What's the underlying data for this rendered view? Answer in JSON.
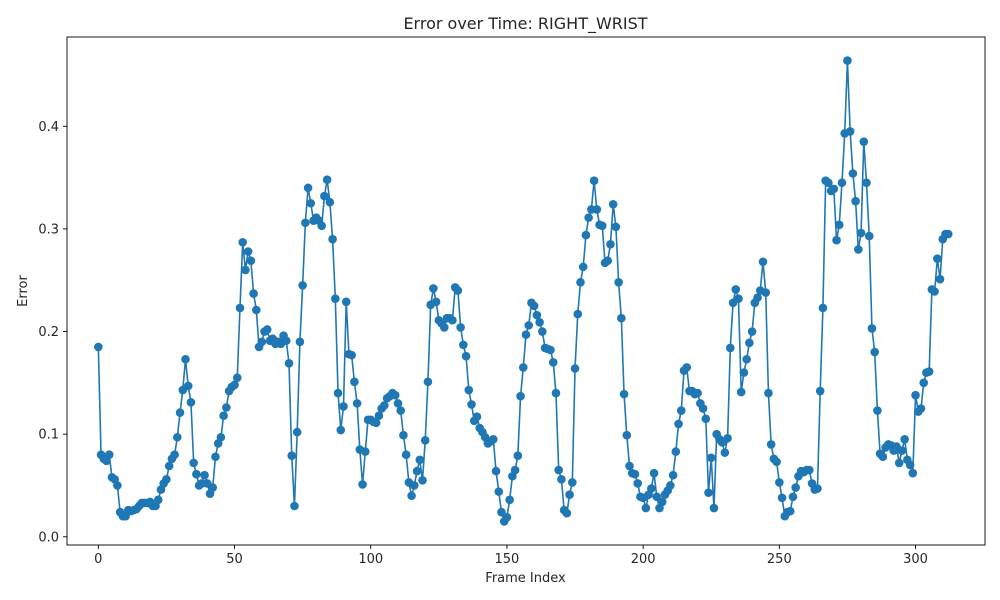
{
  "chart_data": {
    "type": "line",
    "title": "Error over Time: RIGHT_WRIST",
    "xlabel": "Frame Index",
    "ylabel": "Error",
    "xlim": [
      -11.5,
      325.5
    ],
    "ylim": [
      -0.008,
      0.487
    ],
    "x_ticks": [
      0,
      50,
      100,
      150,
      200,
      250,
      300
    ],
    "y_ticks": [
      0.0,
      0.1,
      0.2,
      0.3,
      0.4
    ],
    "y_tick_labels": [
      "0.0",
      "0.1",
      "0.2",
      "0.3",
      "0.4"
    ],
    "grid": false,
    "legend": "none",
    "series": [
      {
        "color": "#1f77b4",
        "marker": "circle",
        "x_start": 0,
        "x_step": 1,
        "values": [
          0.185,
          0.08,
          0.076,
          0.074,
          0.08,
          0.058,
          0.056,
          0.05,
          0.024,
          0.02,
          0.02,
          0.026,
          0.025,
          0.026,
          0.027,
          0.03,
          0.033,
          0.033,
          0.033,
          0.034,
          0.03,
          0.03,
          0.036,
          0.046,
          0.052,
          0.056,
          0.069,
          0.076,
          0.08,
          0.097,
          0.121,
          0.143,
          0.173,
          0.147,
          0.131,
          0.072,
          0.061,
          0.05,
          0.052,
          0.06,
          0.052,
          0.042,
          0.048,
          0.078,
          0.091,
          0.097,
          0.118,
          0.126,
          0.142,
          0.146,
          0.148,
          0.155,
          0.223,
          0.287,
          0.26,
          0.278,
          0.269,
          0.237,
          0.221,
          0.185,
          0.19,
          0.2,
          0.202,
          0.191,
          0.193,
          0.188,
          0.19,
          0.188,
          0.196,
          0.191,
          0.169,
          0.079,
          0.03,
          0.102,
          0.19,
          0.245,
          0.306,
          0.34,
          0.325,
          0.308,
          0.311,
          0.308,
          0.303,
          0.332,
          0.348,
          0.326,
          0.29,
          0.232,
          0.14,
          0.104,
          0.127,
          0.229,
          0.178,
          0.177,
          0.151,
          0.13,
          0.085,
          0.051,
          0.083,
          0.114,
          0.114,
          0.112,
          0.111,
          0.118,
          0.125,
          0.128,
          0.135,
          0.137,
          0.14,
          0.138,
          0.13,
          0.123,
          0.099,
          0.08,
          0.053,
          0.04,
          0.05,
          0.064,
          0.075,
          0.055,
          0.094,
          0.151,
          0.226,
          0.242,
          0.229,
          0.211,
          0.208,
          0.204,
          0.213,
          0.213,
          0.211,
          0.243,
          0.24,
          0.204,
          0.187,
          0.176,
          0.143,
          0.129,
          0.113,
          0.117,
          0.106,
          0.102,
          0.097,
          0.091,
          0.093,
          0.095,
          0.064,
          0.044,
          0.024,
          0.015,
          0.019,
          0.036,
          0.059,
          0.065,
          0.079,
          0.137,
          0.165,
          0.197,
          0.206,
          0.228,
          0.225,
          0.216,
          0.209,
          0.2,
          0.184,
          0.183,
          0.182,
          0.17,
          0.14,
          0.065,
          0.056,
          0.026,
          0.023,
          0.041,
          0.053,
          0.164,
          0.217,
          0.248,
          0.263,
          0.294,
          0.311,
          0.319,
          0.347,
          0.319,
          0.304,
          0.303,
          0.267,
          0.269,
          0.285,
          0.324,
          0.302,
          0.248,
          0.213,
          0.139,
          0.099,
          0.069,
          0.062,
          0.061,
          0.052,
          0.039,
          0.038,
          0.028,
          0.041,
          0.047,
          0.062,
          0.039,
          0.028,
          0.034,
          0.041,
          0.045,
          0.05,
          0.06,
          0.083,
          0.11,
          0.123,
          0.162,
          0.165,
          0.142,
          0.142,
          0.139,
          0.14,
          0.13,
          0.125,
          0.115,
          0.043,
          0.077,
          0.028,
          0.1,
          0.095,
          0.092,
          0.082,
          0.096,
          0.184,
          0.228,
          0.241,
          0.232,
          0.141,
          0.16,
          0.173,
          0.189,
          0.2,
          0.228,
          0.233,
          0.24,
          0.268,
          0.238,
          0.14,
          0.09,
          0.076,
          0.073,
          0.053,
          0.038,
          0.02,
          0.024,
          0.025,
          0.039,
          0.048,
          0.059,
          0.064,
          0.063,
          0.065,
          0.065,
          0.052,
          0.046,
          0.047,
          0.142,
          0.223,
          0.347,
          0.345,
          0.337,
          0.339,
          0.289,
          0.304,
          0.345,
          0.393,
          0.464,
          0.395,
          0.354,
          0.327,
          0.28,
          0.296,
          0.385,
          0.345,
          0.293,
          0.203,
          0.18,
          0.123,
          0.081,
          0.078,
          0.087,
          0.09,
          0.089,
          0.084,
          0.088,
          0.072,
          0.084,
          0.095,
          0.075,
          0.07,
          0.062,
          0.138,
          0.122,
          0.125,
          0.15,
          0.16,
          0.161,
          0.241,
          0.239,
          0.271,
          0.251,
          0.29,
          0.295,
          0.295
        ]
      }
    ]
  }
}
